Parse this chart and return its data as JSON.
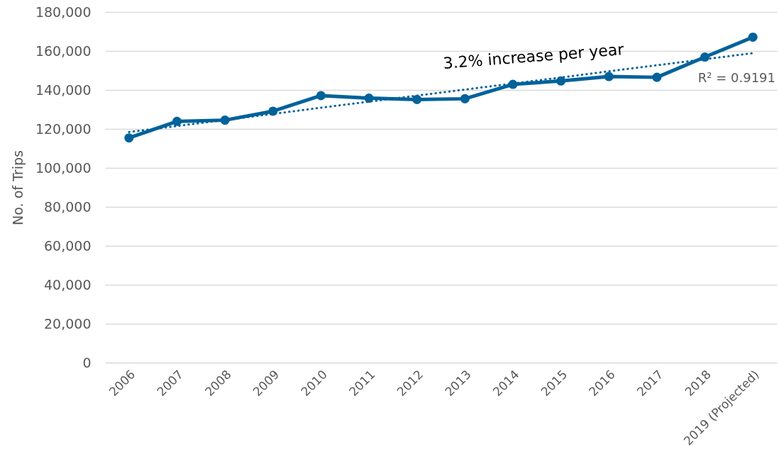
{
  "chart_data": {
    "type": "line",
    "ylabel": "No. of Trips",
    "categories": [
      "2006",
      "2007",
      "2008",
      "2009",
      "2010",
      "2011",
      "2012",
      "2013",
      "2014",
      "2015",
      "2016",
      "2017",
      "2018",
      "2019 (Projected)"
    ],
    "series": [
      {
        "color": "#00629b",
        "marker": "circle",
        "values": [
          115400,
          123900,
          124500,
          129100,
          137100,
          135800,
          135100,
          135500,
          142900,
          144600,
          146900,
          146500,
          156900,
          167100
        ]
      },
      {
        "type": "line",
        "values": [
          118400,
          121500,
          124600,
          127700,
          130900,
          134000,
          137100,
          140200,
          143300,
          146400,
          149600,
          152700,
          155800,
          158900
        ],
        "color": "#00629b",
        "line_style": "dotted",
        "marker": "none"
      }
    ],
    "ylim": [
      0,
      180000
    ],
    "yticks": [
      0,
      {
        "value": 20000,
        "label": "20,000"
      },
      {
        "value": 40000,
        "label": "40,000"
      },
      {
        "value": 60000,
        "label": "60,000"
      },
      {
        "value": 80000,
        "label": "80,000"
      },
      {
        "value": 100000,
        "label": "100,000"
      },
      {
        "value": 120000,
        "label": "120,000"
      },
      {
        "value": 140000,
        "label": "140,000"
      },
      {
        "value": 160000,
        "label": "160,000"
      },
      {
        "value": 180000,
        "label": "180,000"
      }
    ],
    "grid": "y",
    "annotations": [
      "3.2% increase per year",
      "R² = 0.9191"
    ]
  }
}
